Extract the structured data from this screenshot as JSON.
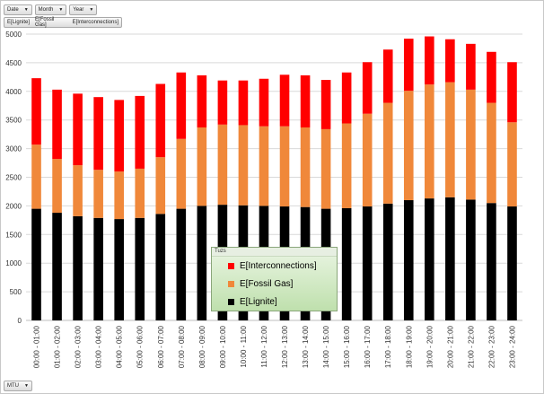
{
  "filters": {
    "date_label": "Date",
    "month_label": "Month",
    "year_label": "Year",
    "fields": [
      "E[Lignite]",
      "E[Fossil Gas]",
      "E[Interconnections]"
    ]
  },
  "bottom_button": "MTU",
  "legend": {
    "title": "Tuzs",
    "items": [
      {
        "label": "E[Interconnections]",
        "color": "#ff0000"
      },
      {
        "label": "E[Fossil Gas]",
        "color": "#f0883a"
      },
      {
        "label": "E[Lignite]",
        "color": "#000000"
      }
    ]
  },
  "chart_data": {
    "type": "bar",
    "stacked": true,
    "ylim": [
      0,
      5000
    ],
    "yticks": [
      0,
      500,
      1000,
      1500,
      2000,
      2500,
      3000,
      3500,
      4000,
      4500,
      5000
    ],
    "grid": true,
    "legend_position": "bottom-center",
    "categories": [
      "00:00 - 01:00",
      "01:00 - 02:00",
      "02:00 - 03:00",
      "03:00 - 04:00",
      "04:00 - 05:00",
      "05:00 - 06:00",
      "06:00 - 07:00",
      "07:00 - 08:00",
      "08:00 - 09:00",
      "09:00 - 10:00",
      "10:00 - 11:00",
      "11:00 - 12:00",
      "12:00 - 13:00",
      "13:00 - 14:00",
      "14:00 - 15:00",
      "15:00 - 16:00",
      "16:00 - 17:00",
      "17:00 - 18:00",
      "18:00 - 19:00",
      "19:00 - 20:00",
      "20:00 - 21:00",
      "21:00 - 22:00",
      "22:00 - 23:00",
      "23:00 - 24:00"
    ],
    "series": [
      {
        "name": "E[Lignite]",
        "color": "#000000",
        "values": [
          1950,
          1880,
          1820,
          1790,
          1770,
          1790,
          1860,
          1950,
          2000,
          2020,
          2010,
          2000,
          1990,
          1980,
          1950,
          1960,
          1990,
          2040,
          2100,
          2130,
          2150,
          2110,
          2050,
          1990
        ]
      },
      {
        "name": "E[Fossil Gas]",
        "color": "#f0883a",
        "values": [
          1120,
          940,
          890,
          840,
          830,
          860,
          990,
          1220,
          1370,
          1400,
          1400,
          1390,
          1400,
          1390,
          1390,
          1480,
          1620,
          1760,
          1910,
          1990,
          2010,
          1920,
          1750,
          1470
        ]
      },
      {
        "name": "E[Interconnections]",
        "color": "#ff0000",
        "values": [
          1160,
          1210,
          1250,
          1270,
          1250,
          1270,
          1280,
          1160,
          910,
          770,
          780,
          830,
          900,
          910,
          860,
          890,
          900,
          930,
          910,
          840,
          750,
          800,
          890,
          1050
        ]
      }
    ]
  }
}
